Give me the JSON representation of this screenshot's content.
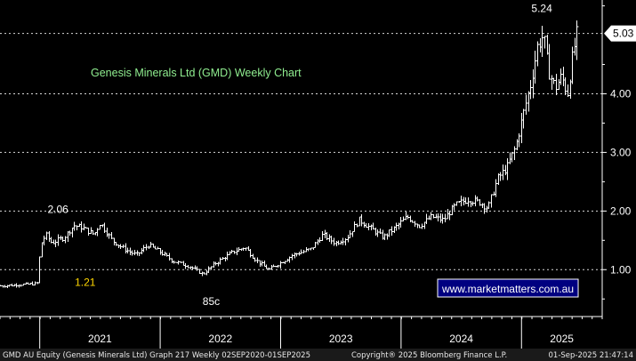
{
  "chart_data": {
    "type": "ohlc",
    "title": "Genesis Minerals Ltd (GMD) Weekly Chart",
    "watermark": "www.marketmatters.com.au",
    "last_value_label": "5.03",
    "y_ticks": [
      {
        "value": 1.0,
        "label": "1.00"
      },
      {
        "value": 2.0,
        "label": "2.00"
      },
      {
        "value": 3.0,
        "label": "3.00"
      },
      {
        "value": 4.0,
        "label": "4.00"
      }
    ],
    "ylim": [
      0.2,
      5.6
    ],
    "x_start": 2020.67,
    "x_end": 2025.67,
    "years": [
      {
        "label": "2021",
        "start": 2021.0
      },
      {
        "label": "2022",
        "start": 2022.0
      },
      {
        "label": "2023",
        "start": 2023.0
      },
      {
        "label": "2024",
        "start": 2024.0
      },
      {
        "label": "2025",
        "start": 2025.0
      }
    ],
    "annotations": [
      {
        "text": "2.06",
        "x": 2021.05,
        "y": 2.06,
        "color": "#ffffff"
      },
      {
        "text": "1.21",
        "x": 2021.35,
        "y": 1.21,
        "color": "#ffd700"
      },
      {
        "text": "85c",
        "x": 2022.35,
        "y": 0.85,
        "color": "#ffffff"
      },
      {
        "text": "5.24",
        "x": 2025.08,
        "y": 5.24,
        "color": "#ffffff"
      }
    ],
    "anchors": [
      [
        2020.67,
        0.72
      ],
      [
        2020.8,
        0.74
      ],
      [
        2020.95,
        0.76
      ],
      [
        2020.99,
        0.78
      ],
      [
        2021.0,
        1.4
      ],
      [
        2021.05,
        1.6
      ],
      [
        2021.1,
        1.45
      ],
      [
        2021.2,
        1.55
      ],
      [
        2021.28,
        1.75
      ],
      [
        2021.35,
        1.72
      ],
      [
        2021.45,
        1.6
      ],
      [
        2021.5,
        1.8
      ],
      [
        2021.6,
        1.5
      ],
      [
        2021.7,
        1.35
      ],
      [
        2021.8,
        1.25
      ],
      [
        2021.9,
        1.42
      ],
      [
        2022.0,
        1.3
      ],
      [
        2022.1,
        1.15
      ],
      [
        2022.25,
        1.05
      ],
      [
        2022.35,
        0.92
      ],
      [
        2022.45,
        1.1
      ],
      [
        2022.6,
        1.3
      ],
      [
        2022.7,
        1.38
      ],
      [
        2022.8,
        1.15
      ],
      [
        2022.9,
        1.0
      ],
      [
        2023.0,
        1.12
      ],
      [
        2023.1,
        1.25
      ],
      [
        2023.25,
        1.35
      ],
      [
        2023.35,
        1.6
      ],
      [
        2023.45,
        1.45
      ],
      [
        2023.55,
        1.55
      ],
      [
        2023.65,
        1.85
      ],
      [
        2023.75,
        1.7
      ],
      [
        2023.85,
        1.55
      ],
      [
        2023.95,
        1.72
      ],
      [
        2024.05,
        1.9
      ],
      [
        2024.15,
        1.75
      ],
      [
        2024.25,
        1.9
      ],
      [
        2024.35,
        1.85
      ],
      [
        2024.45,
        2.1
      ],
      [
        2024.55,
        2.2
      ],
      [
        2024.65,
        2.15
      ],
      [
        2024.72,
        2.05
      ],
      [
        2024.8,
        2.55
      ],
      [
        2024.88,
        2.75
      ],
      [
        2024.95,
        3.1
      ],
      [
        2025.03,
        3.8
      ],
      [
        2025.08,
        4.2
      ],
      [
        2025.13,
        4.8
      ],
      [
        2025.18,
        5.0
      ],
      [
        2025.22,
        4.4
      ],
      [
        2025.28,
        4.1
      ],
      [
        2025.33,
        4.3
      ],
      [
        2025.38,
        4.0
      ],
      [
        2025.42,
        4.6
      ],
      [
        2025.46,
        5.03
      ]
    ]
  },
  "footer": {
    "left": "GMD AU Equity (Genesis Minerals Ltd) Graph 217  Weekly 02SEP2020-01SEP2025",
    "center": "Copyright® 2025 Bloomberg Finance L.P.",
    "right": "01-Sep-2025 21:47:14"
  },
  "colors": {
    "background": "#000000",
    "title": "#90ee90",
    "watermark_text": "#ffffff",
    "watermark_border": "#ffffff",
    "watermark_bg": "#000080",
    "bars": "#ffffff",
    "footer_bg": "#1a1a1a"
  }
}
